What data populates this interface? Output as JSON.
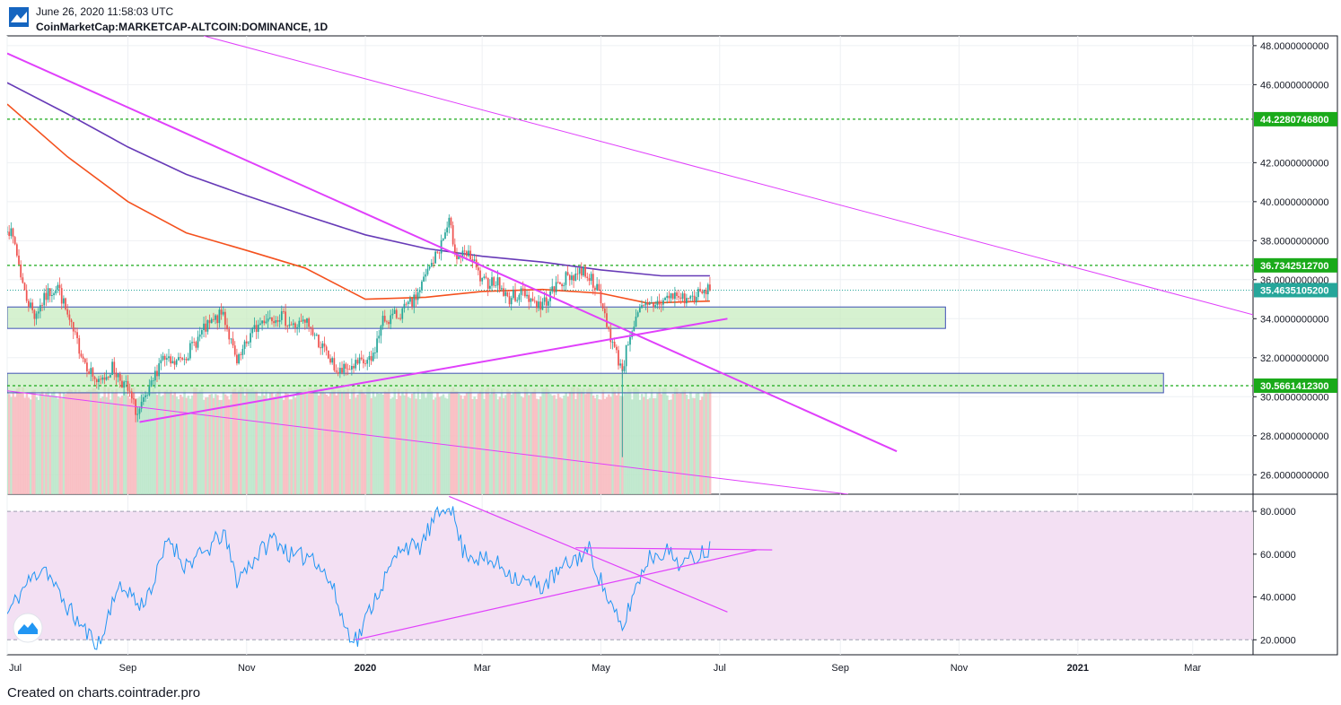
{
  "header": {
    "timestamp": "June 26, 2020 11:58:03 UTC",
    "symbol": "CoinMarketCap:MARKETCAP-ALTCOIN:DOMINANCE, 1D"
  },
  "footer": {
    "text": "Created on charts.cointrader.pro"
  },
  "colors": {
    "up": "#26a69a",
    "down": "#ef5350",
    "ma_red": "#f4511e",
    "ma_purple": "#673ab7",
    "trendline": "#e040fb",
    "level": "#1aaa1a",
    "zone_fill": "#c8ecc0",
    "zone_border": "#3f51b5",
    "rsi": "#2196f3",
    "rsi_band": "#f3e0f3",
    "last_price": "#26a69a"
  },
  "chart_data": [
    {
      "type": "candlestick",
      "title": "",
      "x_range": [
        "2019-07-01",
        "2021-04-01"
      ],
      "ylim": [
        25,
        48.5
      ],
      "y_ticks": [
        "48.0000000000",
        "46.0000000000",
        "42.0000000000",
        "40.0000000000",
        "38.0000000000",
        "36.0000000000",
        "34.0000000000",
        "32.0000000000",
        "30.0000000000",
        "28.0000000000",
        "26.0000000000"
      ],
      "y_tick_values": [
        48,
        46,
        42,
        40,
        38,
        36,
        34,
        32,
        30,
        28,
        26
      ],
      "x_ticks": [
        "Jul",
        "Sep",
        "Nov",
        "2020",
        "Mar",
        "May",
        "Jul",
        "Sep",
        "Nov",
        "2021",
        "Mar"
      ],
      "x_tick_dates": [
        "2019-07-01",
        "2019-09-01",
        "2019-11-01",
        "2020-01-01",
        "2020-03-01",
        "2020-05-01",
        "2020-07-01",
        "2020-09-01",
        "2020-11-01",
        "2021-01-01",
        "2021-03-01"
      ],
      "close_path": [
        [
          "2019-07-01",
          38.8
        ],
        [
          "2019-07-05",
          37.8
        ],
        [
          "2019-07-10",
          35.3
        ],
        [
          "2019-07-15",
          34.2
        ],
        [
          "2019-07-22",
          35.3
        ],
        [
          "2019-07-27",
          35.7
        ],
        [
          "2019-08-03",
          33.5
        ],
        [
          "2019-08-10",
          31.8
        ],
        [
          "2019-08-17",
          30.6
        ],
        [
          "2019-08-24",
          31.5
        ],
        [
          "2019-08-31",
          30.5
        ],
        [
          "2019-09-06",
          29.1
        ],
        [
          "2019-09-12",
          30.2
        ],
        [
          "2019-09-18",
          32.0
        ],
        [
          "2019-09-24",
          31.6
        ],
        [
          "2019-10-02",
          32.3
        ],
        [
          "2019-10-10",
          33.4
        ],
        [
          "2019-10-20",
          34.3
        ],
        [
          "2019-10-27",
          31.6
        ],
        [
          "2019-11-03",
          33.2
        ],
        [
          "2019-11-10",
          34.0
        ],
        [
          "2019-11-18",
          34.2
        ],
        [
          "2019-11-25",
          33.6
        ],
        [
          "2019-12-02",
          33.8
        ],
        [
          "2019-12-10",
          32.5
        ],
        [
          "2019-12-18",
          31.2
        ],
        [
          "2019-12-26",
          31.6
        ],
        [
          "2020-01-04",
          31.8
        ],
        [
          "2020-01-10",
          33.9
        ],
        [
          "2020-01-18",
          34.2
        ],
        [
          "2020-01-26",
          34.9
        ],
        [
          "2020-02-02",
          36.4
        ],
        [
          "2020-02-08",
          37.6
        ],
        [
          "2020-02-13",
          38.9
        ],
        [
          "2020-02-17",
          37.2
        ],
        [
          "2020-02-24",
          37.2
        ],
        [
          "2020-03-01",
          35.8
        ],
        [
          "2020-03-08",
          36.0
        ],
        [
          "2020-03-14",
          35.0
        ],
        [
          "2020-03-22",
          35.4
        ],
        [
          "2020-03-31",
          34.6
        ],
        [
          "2020-04-10",
          35.9
        ],
        [
          "2020-04-22",
          36.5
        ],
        [
          "2020-04-28",
          35.8
        ],
        [
          "2020-05-04",
          33.8
        ],
        [
          "2020-05-08",
          32.4
        ],
        [
          "2020-05-12",
          31.4
        ],
        [
          "2020-05-16",
          33.3
        ],
        [
          "2020-05-22",
          34.5
        ],
        [
          "2020-05-30",
          34.8
        ],
        [
          "2020-06-07",
          35.2
        ],
        [
          "2020-06-15",
          35.0
        ],
        [
          "2020-06-22",
          35.3
        ],
        [
          "2020-06-26",
          35.46
        ]
      ],
      "series": [
        {
          "name": "",
          "kind": "sma-200",
          "color_key": "ma_red",
          "points": [
            [
              "2019-07-01",
              45.0
            ],
            [
              "2019-08-01",
              42.3
            ],
            [
              "2019-09-01",
              40.0
            ],
            [
              "2019-10-01",
              38.4
            ],
            [
              "2019-11-01",
              37.5
            ],
            [
              "2019-12-01",
              36.6
            ],
            [
              "2020-01-01",
              35.0
            ],
            [
              "2020-02-01",
              35.1
            ],
            [
              "2020-03-01",
              35.4
            ],
            [
              "2020-04-01",
              35.5
            ],
            [
              "2020-05-01",
              35.3
            ],
            [
              "2020-05-25",
              34.8
            ],
            [
              "2020-06-26",
              34.9
            ]
          ]
        },
        {
          "name": "",
          "kind": "sma-long",
          "color_key": "ma_purple",
          "points": [
            [
              "2019-07-01",
              46.1
            ],
            [
              "2019-08-01",
              44.5
            ],
            [
              "2019-09-01",
              42.8
            ],
            [
              "2019-10-01",
              41.4
            ],
            [
              "2019-11-01",
              40.3
            ],
            [
              "2019-12-01",
              39.3
            ],
            [
              "2020-01-01",
              38.3
            ],
            [
              "2020-02-01",
              37.6
            ],
            [
              "2020-03-01",
              37.2
            ],
            [
              "2020-04-01",
              36.9
            ],
            [
              "2020-05-01",
              36.5
            ],
            [
              "2020-06-01",
              36.2
            ],
            [
              "2020-06-26",
              36.2
            ]
          ]
        }
      ],
      "horizontal_levels": [
        {
          "value": 44.22807468,
          "label": "44.2280746800"
        },
        {
          "value": 36.73425127,
          "label": "36.7342512700"
        },
        {
          "value": 30.56614123,
          "label": "30.5661412300"
        }
      ],
      "last_price": {
        "value": 35.46351052,
        "label": "35.4635105200"
      },
      "zones": [
        {
          "x0": "2019-07-01",
          "x1": "2020-10-25",
          "y0": 33.5,
          "y1": 34.6
        },
        {
          "x0": "2019-07-01",
          "x1": "2021-02-14",
          "y0": 30.2,
          "y1": 31.2
        }
      ],
      "trendlines": [
        {
          "x0": "2019-07-01",
          "y0": 47.6,
          "x1": "2020-09-30",
          "y1": 27.2,
          "width": 2
        },
        {
          "x0": "2019-09-07",
          "y0": 28.7,
          "x1": "2020-07-05",
          "y1": 34.0,
          "width": 2
        },
        {
          "x0": "2019-10-10",
          "y0": 48.5,
          "x1": "2021-04-01",
          "y1": 34.2,
          "width": 1
        },
        {
          "x0": "2019-07-01",
          "y0": 30.3,
          "x1": "2020-09-05",
          "y1": 25.0,
          "width": 1
        }
      ],
      "volume_until": "2020-06-26"
    },
    {
      "type": "line",
      "title": "",
      "ylim": [
        13,
        88
      ],
      "y_ticks": [
        "80.0000",
        "60.0000",
        "40.0000",
        "20.0000"
      ],
      "y_tick_values": [
        80,
        60,
        40,
        20
      ],
      "band": [
        20,
        80
      ],
      "series": [
        {
          "name": "",
          "points": [
            [
              "2019-07-01",
              32
            ],
            [
              "2019-07-10",
              45
            ],
            [
              "2019-07-20",
              55
            ],
            [
              "2019-07-27",
              42
            ],
            [
              "2019-08-05",
              30
            ],
            [
              "2019-08-12",
              22
            ],
            [
              "2019-08-18",
              18
            ],
            [
              "2019-08-25",
              42
            ],
            [
              "2019-09-01",
              44
            ],
            [
              "2019-09-07",
              35
            ],
            [
              "2019-09-15",
              48
            ],
            [
              "2019-09-22",
              68
            ],
            [
              "2019-09-30",
              55
            ],
            [
              "2019-10-10",
              60
            ],
            [
              "2019-10-20",
              70
            ],
            [
              "2019-10-27",
              48
            ],
            [
              "2019-11-05",
              58
            ],
            [
              "2019-11-15",
              68
            ],
            [
              "2019-11-25",
              58
            ],
            [
              "2019-12-05",
              60
            ],
            [
              "2019-12-15",
              45
            ],
            [
              "2019-12-22",
              25
            ],
            [
              "2019-12-28",
              20
            ],
            [
              "2020-01-05",
              38
            ],
            [
              "2020-01-12",
              50
            ],
            [
              "2020-01-20",
              65
            ],
            [
              "2020-01-28",
              62
            ],
            [
              "2020-02-05",
              75
            ],
            [
              "2020-02-13",
              85
            ],
            [
              "2020-02-20",
              62
            ],
            [
              "2020-02-28",
              58
            ],
            [
              "2020-03-10",
              55
            ],
            [
              "2020-03-20",
              48
            ],
            [
              "2020-04-01",
              45
            ],
            [
              "2020-04-15",
              56
            ],
            [
              "2020-04-25",
              62
            ],
            [
              "2020-05-02",
              45
            ],
            [
              "2020-05-08",
              32
            ],
            [
              "2020-05-12",
              24
            ],
            [
              "2020-05-17",
              40
            ],
            [
              "2020-05-25",
              58
            ],
            [
              "2020-06-03",
              62
            ],
            [
              "2020-06-12",
              55
            ],
            [
              "2020-06-20",
              60
            ],
            [
              "2020-06-26",
              63
            ]
          ]
        }
      ],
      "trendlines": [
        {
          "x0": "2019-12-27",
          "y0": 20,
          "x1": "2020-07-20",
          "y1": 62
        },
        {
          "x0": "2020-02-13",
          "y0": 87,
          "x1": "2020-07-05",
          "y1": 33
        },
        {
          "x0": "2020-04-18",
          "y0": 63,
          "x1": "2020-07-28",
          "y1": 62
        }
      ]
    }
  ]
}
